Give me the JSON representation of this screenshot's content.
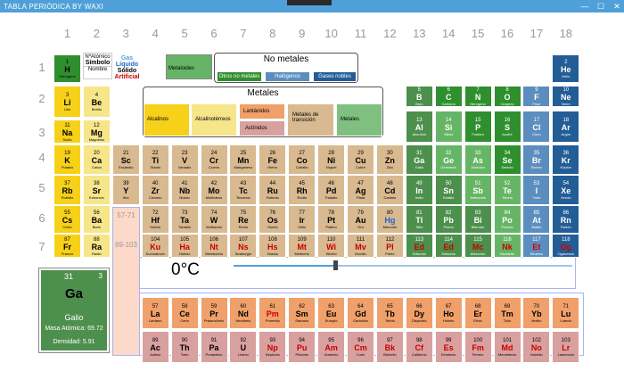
{
  "window": {
    "title": "TABLA PERIÓDICA BY WAXI",
    "minimize": "—",
    "maximize": "☐",
    "close": "✕"
  },
  "columns": [
    "1",
    "2",
    "3",
    "4",
    "5",
    "6",
    "7",
    "8",
    "9",
    "10",
    "11",
    "12",
    "13",
    "14",
    "15",
    "16",
    "17",
    "18"
  ],
  "rows": [
    "1",
    "2",
    "3",
    "4",
    "5",
    "6",
    "7"
  ],
  "colors": {
    "accent": "#4fa0d8",
    "metal_box": "#d8b990",
    "actinide_strip": "#fdd9c9"
  },
  "legend": {
    "key": {
      "atomic_number": "NºAtómico",
      "symbol": "Símbolo",
      "name": "Nombre"
    },
    "states": {
      "gas": "Gas",
      "liquid": "Líquido",
      "solid": "Sólido",
      "artificial": "Artificial"
    },
    "metaloides": "Metaloides",
    "no_metales_title": "No metales",
    "no_metales": [
      "Otros no metales",
      "Halógenos",
      "Gases nobles"
    ],
    "metales_title": "Metales",
    "metales": [
      "Alcalinos",
      "Alcalinotérreos",
      "Lantánidos",
      "Actínidos",
      "Metales de transición",
      "Metales"
    ]
  },
  "placeholders": {
    "lanthanides": "57-71",
    "actinides": "89-103"
  },
  "detail": {
    "number": "31",
    "oxidation": "3",
    "symbol": "Ga",
    "name": "Galio",
    "mass": "Masa Atómica: 69.72",
    "density": "Densidad: 5.91"
  },
  "temperature": {
    "label": "0°C",
    "value_fraction": 0.3
  },
  "elements": [
    [
      "1",
      "H",
      "Hidrógeno",
      1,
      1,
      "#2f8f2f",
      "#000"
    ],
    [
      "2",
      "He",
      "Helio",
      1,
      18,
      "#235d96",
      "#fff"
    ],
    [
      "3",
      "Li",
      "Litio",
      2,
      1,
      "#f7d119",
      "#000"
    ],
    [
      "4",
      "Be",
      "Berilio",
      2,
      2,
      "#f7e58a",
      "#000"
    ],
    [
      "5",
      "B",
      "Boro",
      2,
      13,
      "#4d8f4d",
      "#fff"
    ],
    [
      "6",
      "C",
      "Carbono",
      2,
      14,
      "#2f8f2f",
      "#fff"
    ],
    [
      "7",
      "N",
      "Nitrógeno",
      2,
      15,
      "#2f8f2f",
      "#fff"
    ],
    [
      "8",
      "O",
      "Oxígeno",
      2,
      16,
      "#2f8f2f",
      "#fff"
    ],
    [
      "9",
      "F",
      "Flúor",
      2,
      17,
      "#5b8ebf",
      "#fff"
    ],
    [
      "10",
      "Ne",
      "Neón",
      2,
      18,
      "#235d96",
      "#fff"
    ],
    [
      "11",
      "Na",
      "Sodio",
      3,
      1,
      "#f7d119",
      "#000"
    ],
    [
      "12",
      "Mg",
      "Magnesio",
      3,
      2,
      "#f7e58a",
      "#000"
    ],
    [
      "13",
      "Al",
      "Aluminio",
      3,
      13,
      "#4d8f4d",
      "#fff"
    ],
    [
      "14",
      "Si",
      "Silicio",
      3,
      14,
      "#66b566",
      "#fff"
    ],
    [
      "15",
      "P",
      "Fósforo",
      3,
      15,
      "#2f8f2f",
      "#fff"
    ],
    [
      "16",
      "S",
      "Azufre",
      3,
      16,
      "#2f8f2f",
      "#fff"
    ],
    [
      "17",
      "Cl",
      "Cloro",
      3,
      17,
      "#5b8ebf",
      "#fff"
    ],
    [
      "18",
      "Ar",
      "Argón",
      3,
      18,
      "#235d96",
      "#fff"
    ],
    [
      "19",
      "K",
      "Potasio",
      4,
      1,
      "#f7d119",
      "#000"
    ],
    [
      "20",
      "Ca",
      "Calcio",
      4,
      2,
      "#f7e58a",
      "#000"
    ],
    [
      "21",
      "Sc",
      "Escandio",
      4,
      3,
      "#d8b990",
      "#000"
    ],
    [
      "22",
      "Ti",
      "Titanio",
      4,
      4,
      "#d8b990",
      "#000"
    ],
    [
      "23",
      "V",
      "Vanadio",
      4,
      5,
      "#d8b990",
      "#000"
    ],
    [
      "24",
      "Cr",
      "Cromo",
      4,
      6,
      "#d8b990",
      "#000"
    ],
    [
      "25",
      "Mn",
      "Manganeso",
      4,
      7,
      "#d8b990",
      "#000"
    ],
    [
      "26",
      "Fe",
      "Hierro",
      4,
      8,
      "#d8b990",
      "#000"
    ],
    [
      "27",
      "Co",
      "Cobalto",
      4,
      9,
      "#d8b990",
      "#000"
    ],
    [
      "28",
      "Ni",
      "Níquel",
      4,
      10,
      "#d8b990",
      "#000"
    ],
    [
      "29",
      "Cu",
      "Cobre",
      4,
      11,
      "#d8b990",
      "#000"
    ],
    [
      "30",
      "Zn",
      "Zinc",
      4,
      12,
      "#d8b990",
      "#000"
    ],
    [
      "31",
      "Ga",
      "Galio",
      4,
      13,
      "#4d8f4d",
      "#fff"
    ],
    [
      "32",
      "Ge",
      "Germanio",
      4,
      14,
      "#66b566",
      "#fff"
    ],
    [
      "33",
      "As",
      "Arsénico",
      4,
      15,
      "#66b566",
      "#fff"
    ],
    [
      "34",
      "Se",
      "Selenio",
      4,
      16,
      "#2f8f2f",
      "#fff"
    ],
    [
      "35",
      "Br",
      "Bromo",
      4,
      17,
      "#5b8ebf",
      "#fff"
    ],
    [
      "36",
      "Kr",
      "Kriptón",
      4,
      18,
      "#235d96",
      "#fff"
    ],
    [
      "37",
      "Rb",
      "Rubidio",
      5,
      1,
      "#f7d119",
      "#000"
    ],
    [
      "38",
      "Sr",
      "Estroncio",
      5,
      2,
      "#f7e58a",
      "#000"
    ],
    [
      "39",
      "Y",
      "Itrio",
      5,
      3,
      "#d8b990",
      "#000"
    ],
    [
      "40",
      "Zr",
      "Circonio",
      5,
      4,
      "#d8b990",
      "#000"
    ],
    [
      "41",
      "Nb",
      "Niobio",
      5,
      5,
      "#d8b990",
      "#000"
    ],
    [
      "42",
      "Mo",
      "Molibdeno",
      5,
      6,
      "#d8b990",
      "#000"
    ],
    [
      "43",
      "Tc",
      "Tecnecio",
      5,
      7,
      "#d8b990",
      "#000"
    ],
    [
      "44",
      "Ru",
      "Rutenio",
      5,
      8,
      "#d8b990",
      "#000"
    ],
    [
      "45",
      "Rh",
      "Rodio",
      5,
      9,
      "#d8b990",
      "#000"
    ],
    [
      "46",
      "Pd",
      "Paladio",
      5,
      10,
      "#d8b990",
      "#000"
    ],
    [
      "47",
      "Ag",
      "Plata",
      5,
      11,
      "#d8b990",
      "#000"
    ],
    [
      "48",
      "Cd",
      "Cadmio",
      5,
      12,
      "#d8b990",
      "#000"
    ],
    [
      "49",
      "In",
      "Indio",
      5,
      13,
      "#4d8f4d",
      "#fff"
    ],
    [
      "50",
      "Sn",
      "Estaño",
      5,
      14,
      "#4d8f4d",
      "#fff"
    ],
    [
      "51",
      "Sb",
      "Antimonio",
      5,
      15,
      "#66b566",
      "#fff"
    ],
    [
      "52",
      "Te",
      "Telurio",
      5,
      16,
      "#66b566",
      "#fff"
    ],
    [
      "53",
      "I",
      "Yodo",
      5,
      17,
      "#5b8ebf",
      "#fff"
    ],
    [
      "54",
      "Xe",
      "Xenón",
      5,
      18,
      "#235d96",
      "#fff"
    ],
    [
      "55",
      "Cs",
      "Cesio",
      6,
      1,
      "#f7d119",
      "#000"
    ],
    [
      "56",
      "Ba",
      "Bario",
      6,
      2,
      "#f7e58a",
      "#000"
    ],
    [
      "72",
      "Hf",
      "Hafnio",
      6,
      4,
      "#d8b990",
      "#000"
    ],
    [
      "73",
      "Ta",
      "Tantalio",
      6,
      5,
      "#d8b990",
      "#000"
    ],
    [
      "74",
      "W",
      "Wolframio",
      6,
      6,
      "#d8b990",
      "#000"
    ],
    [
      "75",
      "Re",
      "Renio",
      6,
      7,
      "#d8b990",
      "#000"
    ],
    [
      "76",
      "Os",
      "Osmio",
      6,
      8,
      "#d8b990",
      "#000"
    ],
    [
      "77",
      "Ir",
      "Iridio",
      6,
      9,
      "#d8b990",
      "#000"
    ],
    [
      "78",
      "Pt",
      "Platino",
      6,
      10,
      "#d8b990",
      "#000"
    ],
    [
      "79",
      "Au",
      "Oro",
      6,
      11,
      "#d8b990",
      "#000"
    ],
    [
      "80",
      "Hg",
      "Mercurio",
      6,
      12,
      "#d8b990",
      "#2266cc"
    ],
    [
      "81",
      "Tl",
      "Talio",
      6,
      13,
      "#4d8f4d",
      "#fff"
    ],
    [
      "82",
      "Pb",
      "Plomo",
      6,
      14,
      "#4d8f4d",
      "#fff"
    ],
    [
      "83",
      "Bi",
      "Bismuto",
      6,
      15,
      "#4d8f4d",
      "#fff"
    ],
    [
      "84",
      "Po",
      "Polonio",
      6,
      16,
      "#66b566",
      "#fff"
    ],
    [
      "85",
      "At",
      "Ástato",
      6,
      17,
      "#5b8ebf",
      "#fff"
    ],
    [
      "86",
      "Rn",
      "Radón",
      6,
      18,
      "#235d96",
      "#fff"
    ],
    [
      "87",
      "Fr",
      "Francio",
      7,
      1,
      "#f7d119",
      "#000"
    ],
    [
      "88",
      "Ra",
      "Radio",
      7,
      2,
      "#f7e58a",
      "#000"
    ],
    [
      "104",
      "Ku",
      "Kurchatovio",
      7,
      4,
      "#d8b990",
      "#c00"
    ],
    [
      "105",
      "Ha",
      "Hahnio",
      7,
      5,
      "#d8b990",
      "#c00"
    ],
    [
      "106",
      "Nt",
      "Nielsbohrio",
      7,
      6,
      "#d8b990",
      "#c00"
    ],
    [
      "107",
      "Ns",
      "Seaborgio",
      7,
      7,
      "#d8b990",
      "#c00"
    ],
    [
      "108",
      "Hs",
      "Hassio",
      7,
      8,
      "#d8b990",
      "#c00"
    ],
    [
      "109",
      "Mt",
      "Meitnerio",
      7,
      9,
      "#d8b990",
      "#c00"
    ],
    [
      "110",
      "Wi",
      "Wixhio",
      7,
      10,
      "#d8b990",
      "#c00"
    ],
    [
      "111",
      "Mv",
      "Movilio",
      7,
      11,
      "#d8b990",
      "#c00"
    ],
    [
      "112",
      "Pl",
      "Plerio",
      7,
      12,
      "#d8b990",
      "#c00"
    ],
    [
      "113",
      "Ed",
      "Edisonio",
      7,
      13,
      "#4d8f4d",
      "#c00"
    ],
    [
      "114",
      "Ed",
      "Edisonio",
      7,
      14,
      "#4d8f4d",
      "#c00"
    ],
    [
      "115",
      "Mc",
      "Moscovio",
      7,
      15,
      "#4d8f4d",
      "#c00"
    ],
    [
      "116",
      "Nk",
      "Nectarito",
      7,
      16,
      "#66b566",
      "#c00"
    ],
    [
      "117",
      "Et",
      "Etioleno",
      7,
      17,
      "#5b8ebf",
      "#c00"
    ],
    [
      "118",
      "Og",
      "Oganesón",
      7,
      18,
      "#235d96",
      "#c00"
    ],
    [
      "57",
      "La",
      "Lantano",
      9,
      4,
      "#f0a06a",
      "#000"
    ],
    [
      "58",
      "Ce",
      "Cerio",
      9,
      5,
      "#f0a06a",
      "#000"
    ],
    [
      "59",
      "Pr",
      "Praseodimio",
      9,
      6,
      "#f0a06a",
      "#000"
    ],
    [
      "60",
      "Nd",
      "Neodimio",
      9,
      7,
      "#f0a06a",
      "#000"
    ],
    [
      "61",
      "Pm",
      "Prometio",
      9,
      8,
      "#f0a06a",
      "#c00"
    ],
    [
      "62",
      "Sm",
      "Samario",
      9,
      9,
      "#f0a06a",
      "#000"
    ],
    [
      "63",
      "Eu",
      "Europio",
      9,
      10,
      "#f0a06a",
      "#000"
    ],
    [
      "64",
      "Gd",
      "Gadolinio",
      9,
      11,
      "#f0a06a",
      "#000"
    ],
    [
      "65",
      "Tb",
      "Terbio",
      9,
      12,
      "#f0a06a",
      "#000"
    ],
    [
      "66",
      "Dy",
      "Disprosio",
      9,
      13,
      "#f0a06a",
      "#000"
    ],
    [
      "67",
      "Ho",
      "Holmio",
      9,
      14,
      "#f0a06a",
      "#000"
    ],
    [
      "68",
      "Er",
      "Erbio",
      9,
      15,
      "#f0a06a",
      "#000"
    ],
    [
      "69",
      "Tm",
      "Tulio",
      9,
      16,
      "#f0a06a",
      "#000"
    ],
    [
      "70",
      "Yb",
      "Iterbio",
      9,
      17,
      "#f0a06a",
      "#000"
    ],
    [
      "71",
      "Lu",
      "Lutecio",
      9,
      18,
      "#f0a06a",
      "#000"
    ],
    [
      "89",
      "Ac",
      "Actinio",
      10,
      4,
      "#d9a0a0",
      "#000"
    ],
    [
      "90",
      "Th",
      "Torio",
      10,
      5,
      "#d9a0a0",
      "#000"
    ],
    [
      "91",
      "Pa",
      "Protactinio",
      10,
      6,
      "#d9a0a0",
      "#000"
    ],
    [
      "92",
      "U",
      "Uranio",
      10,
      7,
      "#d9a0a0",
      "#000"
    ],
    [
      "93",
      "Np",
      "Neptunio",
      10,
      8,
      "#d9a0a0",
      "#c00"
    ],
    [
      "94",
      "Pu",
      "Plutonio",
      10,
      9,
      "#d9a0a0",
      "#c00"
    ],
    [
      "95",
      "Am",
      "Americio",
      10,
      10,
      "#d9a0a0",
      "#c00"
    ],
    [
      "96",
      "Cm",
      "Curio",
      10,
      11,
      "#d9a0a0",
      "#c00"
    ],
    [
      "97",
      "Bk",
      "Berkelio",
      10,
      12,
      "#d9a0a0",
      "#c00"
    ],
    [
      "98",
      "Cf",
      "Californio",
      10,
      13,
      "#d9a0a0",
      "#c00"
    ],
    [
      "99",
      "Es",
      "Einstenio",
      10,
      14,
      "#d9a0a0",
      "#c00"
    ],
    [
      "100",
      "Fm",
      "Fermio",
      10,
      15,
      "#d9a0a0",
      "#c00"
    ],
    [
      "101",
      "Md",
      "Mendelevio",
      10,
      16,
      "#d9a0a0",
      "#c00"
    ],
    [
      "102",
      "No",
      "Nobelio",
      10,
      17,
      "#d9a0a0",
      "#c00"
    ],
    [
      "103",
      "Lr",
      "Lawrencio",
      10,
      18,
      "#d9a0a0",
      "#c00"
    ]
  ]
}
